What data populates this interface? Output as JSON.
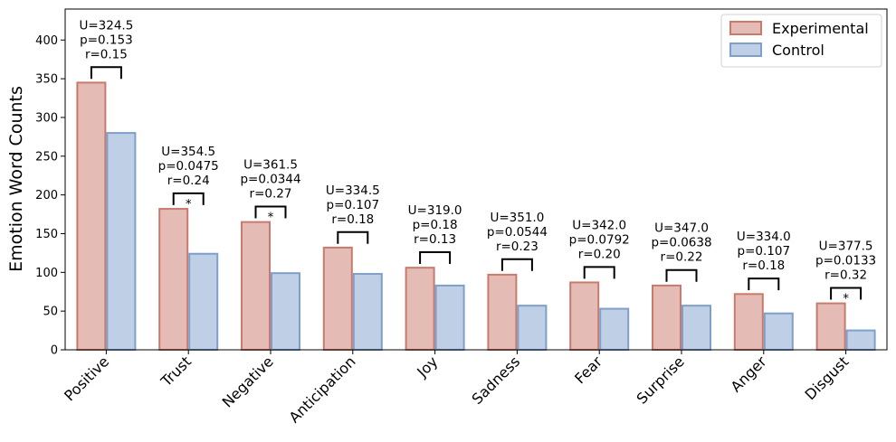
{
  "chart_data": {
    "type": "bar",
    "title": "",
    "xlabel": "",
    "ylabel": "Emotion Word Counts",
    "ylim": [
      0,
      440
    ],
    "yticks": [
      0,
      50,
      100,
      150,
      200,
      250,
      300,
      350,
      400
    ],
    "categories": [
      "Positive",
      "Trust",
      "Negative",
      "Anticipation",
      "Joy",
      "Sadness",
      "Fear",
      "Surprise",
      "Anger",
      "Disgust"
    ],
    "series": [
      {
        "name": "Experimental",
        "values": [
          345,
          182,
          165,
          132,
          106,
          97,
          87,
          83,
          72,
          60
        ],
        "fill": "#e4bcb5",
        "stroke": "#c87a6c"
      },
      {
        "name": "Control",
        "values": [
          280,
          124,
          99,
          98,
          83,
          57,
          53,
          57,
          47,
          25
        ],
        "fill": "#bfcfe6",
        "stroke": "#7f9fcb"
      }
    ],
    "stats": [
      {
        "U": "U=324.5",
        "p": "p=0.153",
        "r": "r=0.15",
        "sig": ""
      },
      {
        "U": "U=354.5",
        "p": "p=0.0475",
        "r": "r=0.24",
        "sig": "*"
      },
      {
        "U": "U=361.5",
        "p": "p=0.0344",
        "r": "r=0.27",
        "sig": "*"
      },
      {
        "U": "U=334.5",
        "p": "p=0.107",
        "r": "r=0.18",
        "sig": ""
      },
      {
        "U": "U=319.0",
        "p": "p=0.18",
        "r": "r=0.13",
        "sig": ""
      },
      {
        "U": "U=351.0",
        "p": "p=0.0544",
        "r": "r=0.23",
        "sig": ""
      },
      {
        "U": "U=342.0",
        "p": "p=0.0792",
        "r": "r=0.20",
        "sig": ""
      },
      {
        "U": "U=347.0",
        "p": "p=0.0638",
        "r": "r=0.22",
        "sig": ""
      },
      {
        "U": "U=334.0",
        "p": "p=0.107",
        "r": "r=0.18",
        "sig": ""
      },
      {
        "U": "U=377.5",
        "p": "p=0.0133",
        "r": "r=0.32",
        "sig": "*"
      }
    ],
    "legend": {
      "position": "top-right",
      "entries": [
        "Experimental",
        "Control"
      ]
    },
    "grid": false
  }
}
